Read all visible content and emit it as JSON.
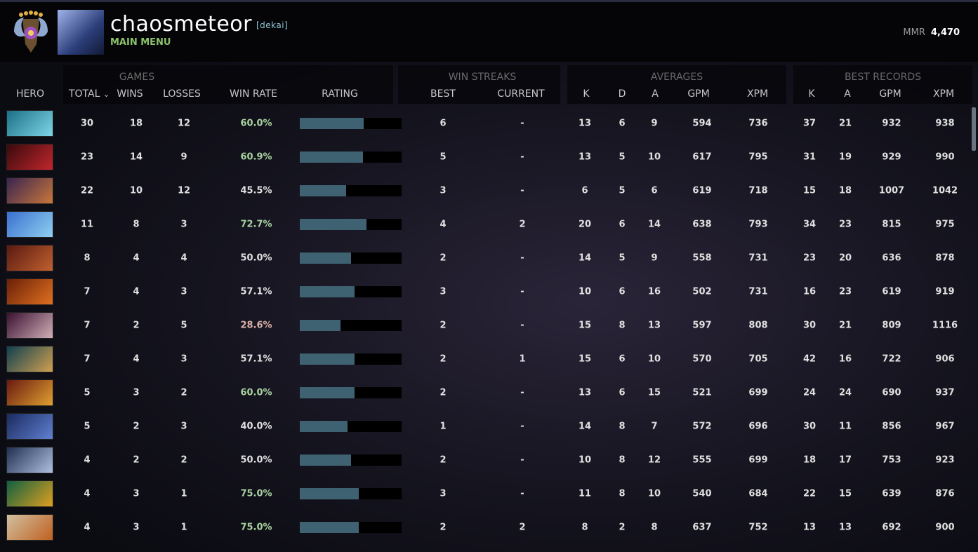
{
  "header": {
    "username": "chaosmeteor",
    "tag": "[dekai]",
    "menu_link": "MAIN MENU",
    "mmr_label": "MMR",
    "mmr_value": "4,470"
  },
  "groups": {
    "games": "GAMES",
    "win_streaks": "WIN STREAKS",
    "averages": "AVERAGES",
    "best_records": "BEST RECORDS"
  },
  "columns": {
    "hero": "HERO",
    "total": "TOTAL",
    "sort_indicator": "⌄",
    "wins": "WINS",
    "losses": "LOSSES",
    "win_rate": "WIN RATE",
    "rating": "RATING",
    "best": "BEST",
    "current": "CURRENT",
    "avg_k": "K",
    "avg_d": "D",
    "avg_a": "A",
    "avg_gpm": "GPM",
    "avg_xpm": "XPM",
    "best_k": "K",
    "best_a": "A",
    "best_gpm": "GPM",
    "best_xpm": "XPM"
  },
  "colors": {
    "win_rate_high": "#a9d3a0",
    "win_rate_mid": "#e0e0e0",
    "win_rate_low": "#dbb2aa",
    "rating_fill": "#3e6272"
  },
  "rows": [
    {
      "hero_colors": [
        "#1b6f86",
        "#7fd6e6"
      ],
      "total": "30",
      "wins": "18",
      "losses": "12",
      "win_rate": "60.0%",
      "rating": 0.63,
      "best": "6",
      "current": "-",
      "k": "13",
      "d": "6",
      "a": "9",
      "gpm": "594",
      "xpm": "736",
      "bk": "37",
      "ba": "21",
      "bgpm": "932",
      "bxpm": "938"
    },
    {
      "hero_colors": [
        "#3a0a0c",
        "#c0262c"
      ],
      "total": "23",
      "wins": "14",
      "losses": "9",
      "win_rate": "60.9%",
      "rating": 0.62,
      "best": "5",
      "current": "-",
      "k": "13",
      "d": "5",
      "a": "10",
      "gpm": "617",
      "xpm": "795",
      "bk": "31",
      "ba": "19",
      "bgpm": "929",
      "bxpm": "990"
    },
    {
      "hero_colors": [
        "#3a2450",
        "#c8773a"
      ],
      "total": "22",
      "wins": "10",
      "losses": "12",
      "win_rate": "45.5%",
      "rating": 0.455,
      "best": "3",
      "current": "-",
      "k": "6",
      "d": "5",
      "a": "6",
      "gpm": "619",
      "xpm": "718",
      "bk": "15",
      "ba": "18",
      "bgpm": "1007",
      "bxpm": "1042"
    },
    {
      "hero_colors": [
        "#3a6fd0",
        "#8fd0f0"
      ],
      "total": "11",
      "wins": "8",
      "losses": "3",
      "win_rate": "72.7%",
      "rating": 0.655,
      "best": "4",
      "current": "2",
      "k": "20",
      "d": "6",
      "a": "14",
      "gpm": "638",
      "xpm": "793",
      "bk": "34",
      "ba": "23",
      "bgpm": "815",
      "bxpm": "975"
    },
    {
      "hero_colors": [
        "#5a1a10",
        "#c06030"
      ],
      "total": "8",
      "wins": "4",
      "losses": "4",
      "win_rate": "50.0%",
      "rating": 0.5,
      "best": "2",
      "current": "-",
      "k": "14",
      "d": "5",
      "a": "9",
      "gpm": "558",
      "xpm": "731",
      "bk": "23",
      "ba": "20",
      "bgpm": "636",
      "bxpm": "878"
    },
    {
      "hero_colors": [
        "#6a2008",
        "#e07020"
      ],
      "total": "7",
      "wins": "4",
      "losses": "3",
      "win_rate": "57.1%",
      "rating": 0.54,
      "best": "3",
      "current": "-",
      "k": "10",
      "d": "6",
      "a": "16",
      "gpm": "502",
      "xpm": "731",
      "bk": "16",
      "ba": "23",
      "bgpm": "619",
      "bxpm": "919"
    },
    {
      "hero_colors": [
        "#3a1030",
        "#d0b0b8"
      ],
      "total": "7",
      "wins": "2",
      "losses": "5",
      "win_rate": "28.6%",
      "rating": 0.4,
      "best": "2",
      "current": "-",
      "k": "15",
      "d": "8",
      "a": "13",
      "gpm": "597",
      "xpm": "808",
      "bk": "30",
      "ba": "21",
      "bgpm": "809",
      "bxpm": "1116"
    },
    {
      "hero_colors": [
        "#104050",
        "#d0a050"
      ],
      "total": "7",
      "wins": "4",
      "losses": "3",
      "win_rate": "57.1%",
      "rating": 0.54,
      "best": "2",
      "current": "1",
      "k": "15",
      "d": "6",
      "a": "10",
      "gpm": "570",
      "xpm": "705",
      "bk": "42",
      "ba": "16",
      "bgpm": "722",
      "bxpm": "906"
    },
    {
      "hero_colors": [
        "#6a1a10",
        "#e0a030"
      ],
      "total": "5",
      "wins": "3",
      "losses": "2",
      "win_rate": "60.0%",
      "rating": 0.54,
      "best": "2",
      "current": "-",
      "k": "13",
      "d": "6",
      "a": "15",
      "gpm": "521",
      "xpm": "699",
      "bk": "24",
      "ba": "24",
      "bgpm": "690",
      "bxpm": "937"
    },
    {
      "hero_colors": [
        "#1a2a60",
        "#6080d0"
      ],
      "total": "5",
      "wins": "2",
      "losses": "3",
      "win_rate": "40.0%",
      "rating": 0.47,
      "best": "1",
      "current": "-",
      "k": "14",
      "d": "8",
      "a": "7",
      "gpm": "572",
      "xpm": "696",
      "bk": "30",
      "ba": "11",
      "bgpm": "856",
      "bxpm": "967"
    },
    {
      "hero_colors": [
        "#203050",
        "#b0c0e0"
      ],
      "total": "4",
      "wins": "2",
      "losses": "2",
      "win_rate": "50.0%",
      "rating": 0.5,
      "best": "2",
      "current": "-",
      "k": "10",
      "d": "8",
      "a": "12",
      "gpm": "555",
      "xpm": "699",
      "bk": "18",
      "ba": "17",
      "bgpm": "753",
      "bxpm": "923"
    },
    {
      "hero_colors": [
        "#106040",
        "#e0a020"
      ],
      "total": "4",
      "wins": "3",
      "losses": "1",
      "win_rate": "75.0%",
      "rating": 0.58,
      "best": "3",
      "current": "-",
      "k": "11",
      "d": "8",
      "a": "10",
      "gpm": "540",
      "xpm": "684",
      "bk": "22",
      "ba": "15",
      "bgpm": "639",
      "bxpm": "876"
    },
    {
      "hero_colors": [
        "#d0c0a0",
        "#c06020"
      ],
      "total": "4",
      "wins": "3",
      "losses": "1",
      "win_rate": "75.0%",
      "rating": 0.58,
      "best": "2",
      "current": "2",
      "k": "8",
      "d": "2",
      "a": "8",
      "gpm": "637",
      "xpm": "752",
      "bk": "13",
      "ba": "13",
      "bgpm": "692",
      "bxpm": "900"
    }
  ]
}
